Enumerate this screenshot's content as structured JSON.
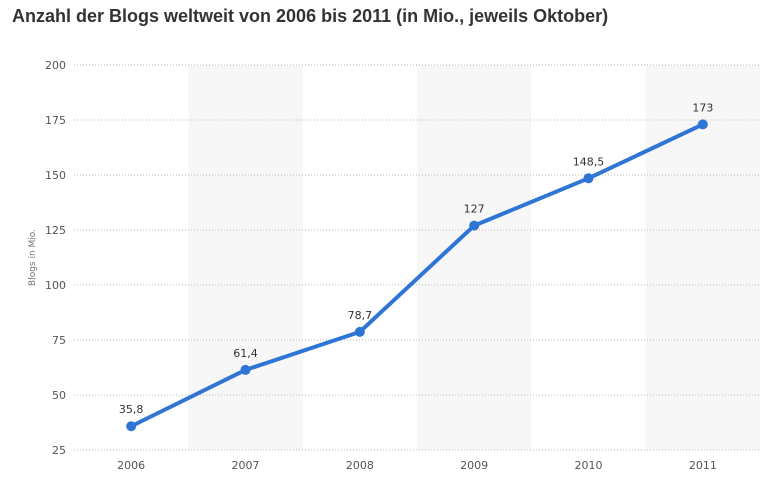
{
  "chart_data": {
    "type": "line",
    "title": "Anzahl der Blogs weltweit von 2006 bis 2011 (in Mio., jeweils Oktober)",
    "xlabel": "",
    "ylabel": "Blogs in Mio.",
    "categories": [
      "2006",
      "2007",
      "2008",
      "2009",
      "2010",
      "2011"
    ],
    "values": [
      35.8,
      61.4,
      78.7,
      127,
      148.5,
      173
    ],
    "value_labels": [
      "35,8",
      "61,4",
      "78,7",
      "127",
      "148,5",
      "173"
    ],
    "yticks": [
      25,
      50,
      75,
      100,
      125,
      150,
      175,
      200
    ],
    "ylim": [
      25,
      200
    ],
    "grid": "horizontal dotted",
    "line_color": "#2f75d6",
    "band_color": "#f7f7f7"
  }
}
